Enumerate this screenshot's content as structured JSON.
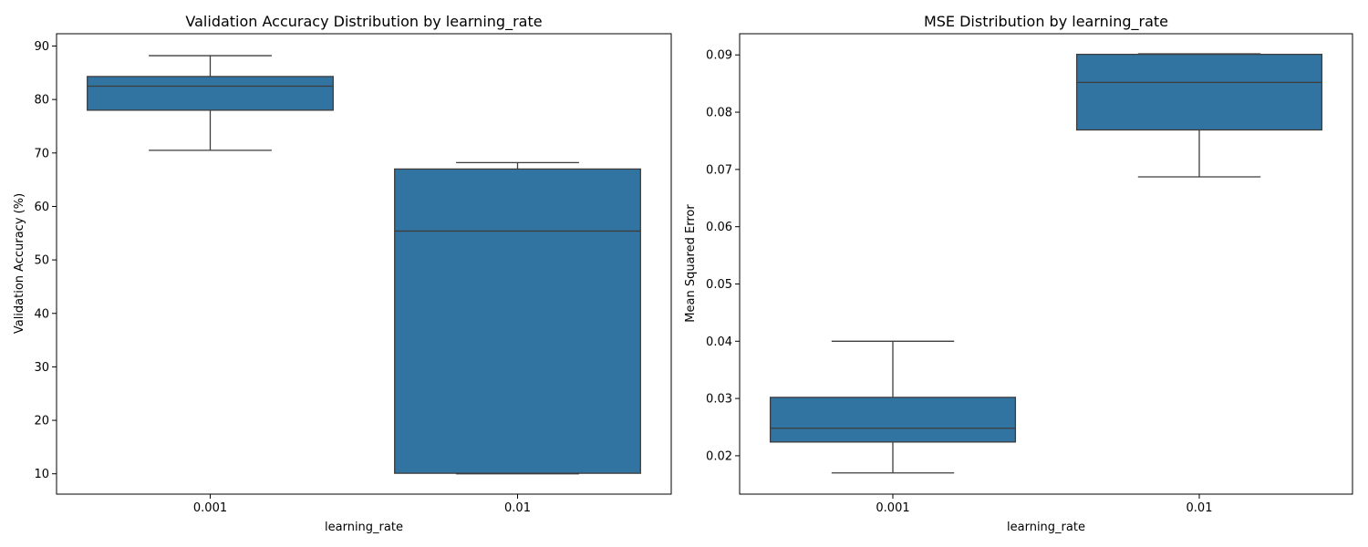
{
  "colors": {
    "box_fill": "#3274a1",
    "line": "#3d3d3d",
    "axis": "#000000"
  },
  "chart_data": [
    {
      "type": "box",
      "title": "Validation Accuracy Distribution by learning_rate",
      "xlabel": "learning_rate",
      "ylabel": "Validation Accuracy (%)",
      "ylim": [
        6.2,
        92.3
      ],
      "yticks": [
        10,
        20,
        30,
        40,
        50,
        60,
        70,
        80,
        90
      ],
      "ytick_labels": [
        "10",
        "20",
        "30",
        "40",
        "50",
        "60",
        "70",
        "80",
        "90"
      ],
      "categories": [
        "0.001",
        "0.01"
      ],
      "boxes": [
        {
          "category": "0.001",
          "whisker_low": 70.5,
          "q1": 78.0,
          "median": 82.5,
          "q3": 84.3,
          "whisker_high": 88.2
        },
        {
          "category": "0.01",
          "whisker_low": 10.0,
          "q1": 10.1,
          "median": 55.4,
          "q3": 67.0,
          "whisker_high": 68.2
        }
      ]
    },
    {
      "type": "box",
      "title": "MSE Distribution by learning_rate",
      "xlabel": "learning_rate",
      "ylabel": "Mean Squared Error",
      "ylim": [
        0.0133,
        0.0937
      ],
      "yticks": [
        0.02,
        0.03,
        0.04,
        0.05,
        0.06,
        0.07,
        0.08,
        0.09
      ],
      "ytick_labels": [
        "0.02",
        "0.03",
        "0.04",
        "0.05",
        "0.06",
        "0.07",
        "0.08",
        "0.09"
      ],
      "categories": [
        "0.001",
        "0.01"
      ],
      "boxes": [
        {
          "category": "0.001",
          "whisker_low": 0.017,
          "q1": 0.0224,
          "median": 0.0248,
          "q3": 0.0302,
          "whisker_high": 0.04
        },
        {
          "category": "0.01",
          "whisker_low": 0.0687,
          "q1": 0.0769,
          "median": 0.0852,
          "q3": 0.0901,
          "whisker_high": 0.0902
        }
      ]
    }
  ]
}
